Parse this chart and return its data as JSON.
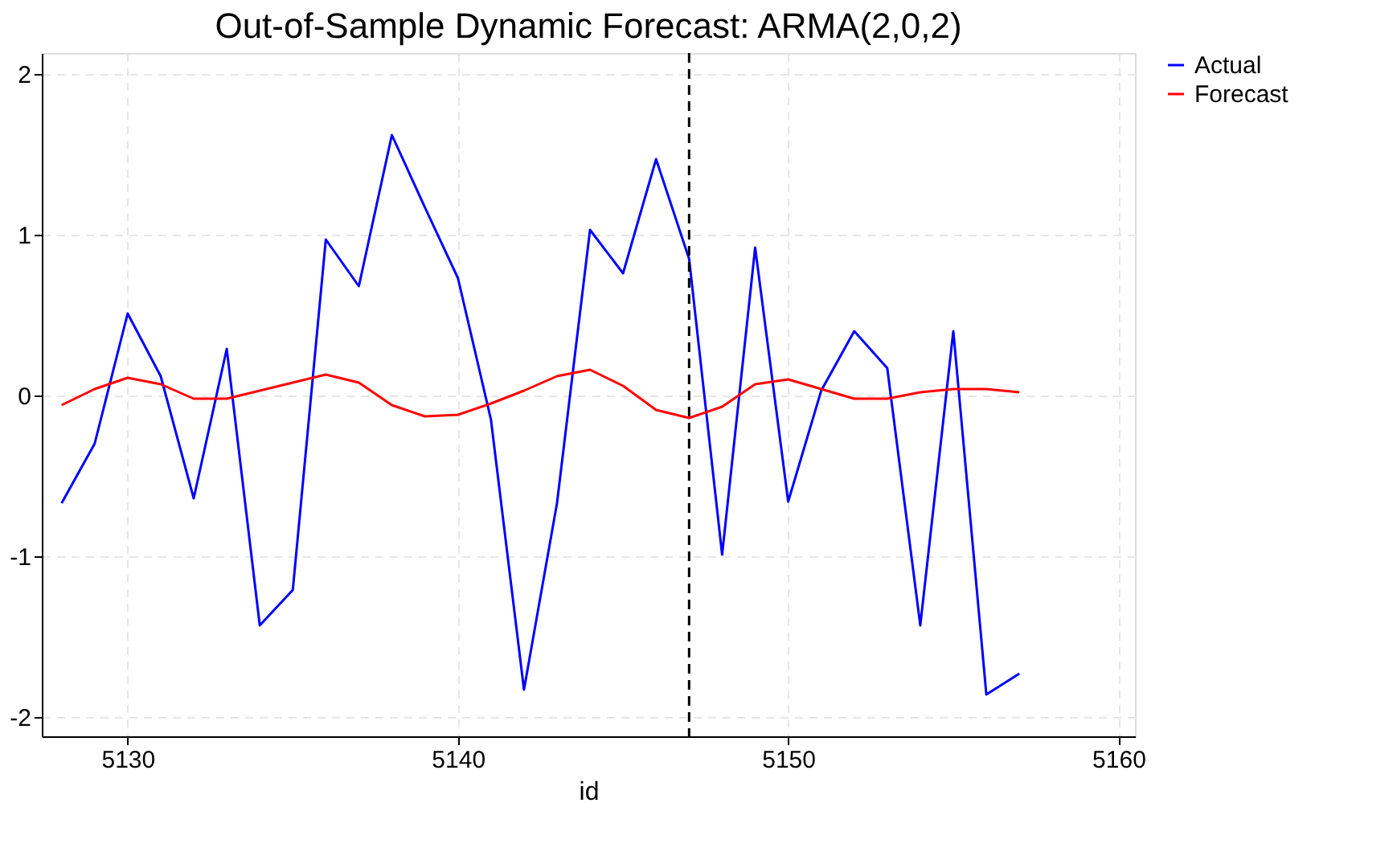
{
  "chart_data": {
    "type": "line",
    "title": "Out-of-Sample Dynamic Forecast: ARMA(2,0,2)",
    "xlabel": "id",
    "x": [
      5128,
      5129,
      5130,
      5131,
      5132,
      5133,
      5134,
      5135,
      5136,
      5137,
      5138,
      5139,
      5140,
      5141,
      5142,
      5143,
      5144,
      5145,
      5146,
      5147,
      5148,
      5149,
      5150,
      5151,
      5152,
      5153,
      5154,
      5155,
      5156,
      5157
    ],
    "series": [
      {
        "name": "Actual",
        "color": "#0000ff",
        "values": [
          -0.67,
          -0.3,
          0.51,
          0.12,
          -0.64,
          0.29,
          -1.43,
          -1.21,
          0.97,
          0.68,
          1.62,
          1.17,
          0.73,
          -0.15,
          -1.83,
          -0.67,
          1.03,
          0.76,
          1.47,
          0.85,
          -0.99,
          0.92,
          -0.66,
          0.03,
          0.4,
          0.17,
          -1.43,
          0.4,
          -1.86,
          -1.73
        ]
      },
      {
        "name": "Forecast",
        "color": "#ff0000",
        "values": [
          -0.06,
          0.04,
          0.11,
          0.07,
          -0.02,
          -0.02,
          0.03,
          0.08,
          0.13,
          0.08,
          -0.06,
          -0.13,
          -0.12,
          -0.05,
          0.03,
          0.12,
          0.16,
          0.06,
          -0.09,
          -0.14,
          -0.07,
          0.07,
          0.1,
          0.04,
          -0.02,
          -0.02,
          0.02,
          0.04,
          0.04,
          0.02
        ]
      }
    ],
    "xlim": [
      5127.4,
      5160.5
    ],
    "xticks": [
      5130,
      5140,
      5150,
      5160
    ],
    "ylim": [
      -2.12,
      2.13
    ],
    "yticks": [
      -2,
      -1,
      0,
      1,
      2
    ],
    "ref_lines": [
      {
        "axis": "x",
        "value": 5147,
        "color": "#000000",
        "line_style": "dashed"
      }
    ],
    "grid": true,
    "legend": "right",
    "line_style": "solid",
    "marker": "none"
  }
}
